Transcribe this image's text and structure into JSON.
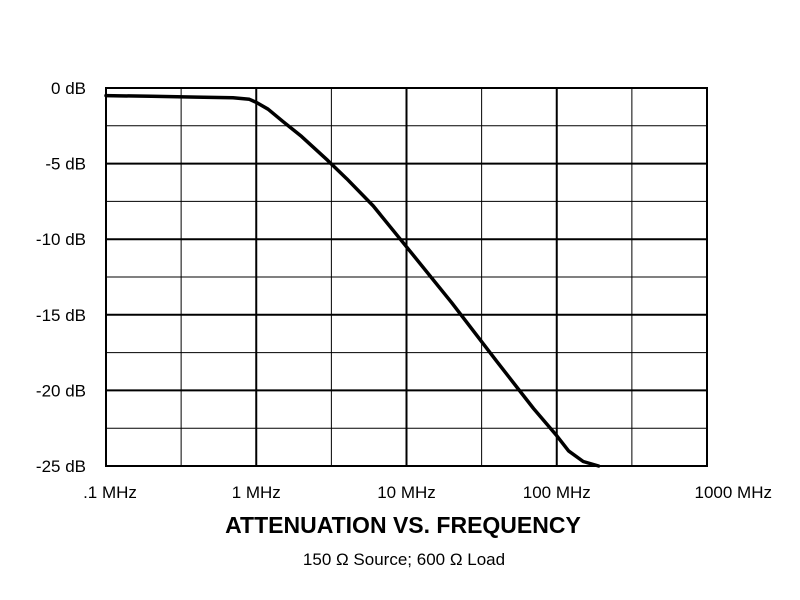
{
  "chart_data": {
    "type": "line",
    "title": "ATTENUATION VS. FREQUENCY",
    "subtitle": "150 Ω Source; 600 Ω Load",
    "x_scale": "log",
    "xlim": [
      0.1,
      1000
    ],
    "ylim": [
      -25,
      0
    ],
    "grid": true,
    "x_ticks": [
      {
        "value": 0.1,
        "label": ".1 MHz"
      },
      {
        "value": 1,
        "label": "1 MHz"
      },
      {
        "value": 10,
        "label": "10 MHz"
      },
      {
        "value": 100,
        "label": "100 MHz"
      },
      {
        "value": 1000,
        "label": "1000 MHz"
      }
    ],
    "y_ticks": [
      {
        "value": 0,
        "label": "0 dB"
      },
      {
        "value": -5,
        "label": "-5 dB"
      },
      {
        "value": -10,
        "label": "-10 dB"
      },
      {
        "value": -15,
        "label": "-15 dB"
      },
      {
        "value": -20,
        "label": "-20 dB"
      },
      {
        "value": -25,
        "label": "-25 dB"
      }
    ],
    "series": [
      {
        "points": [
          [
            0.1,
            -0.5
          ],
          [
            0.2,
            -0.55
          ],
          [
            0.4,
            -0.6
          ],
          [
            0.7,
            -0.65
          ],
          [
            0.9,
            -0.75
          ],
          [
            1.0,
            -0.95
          ],
          [
            1.2,
            -1.4
          ],
          [
            1.5,
            -2.2
          ],
          [
            2.0,
            -3.2
          ],
          [
            3.0,
            -4.8
          ],
          [
            4.0,
            -6.0
          ],
          [
            6.0,
            -7.8
          ],
          [
            10.0,
            -10.5
          ],
          [
            20.0,
            -14.2
          ],
          [
            40.0,
            -18.1
          ],
          [
            70.0,
            -21.2
          ],
          [
            100.0,
            -23.0
          ],
          [
            120.0,
            -24.0
          ],
          [
            150.0,
            -24.7
          ],
          [
            190.0,
            -25.0
          ]
        ]
      }
    ],
    "colors": {
      "line": "#000000",
      "grid": "#000000",
      "background": "#ffffff"
    }
  }
}
